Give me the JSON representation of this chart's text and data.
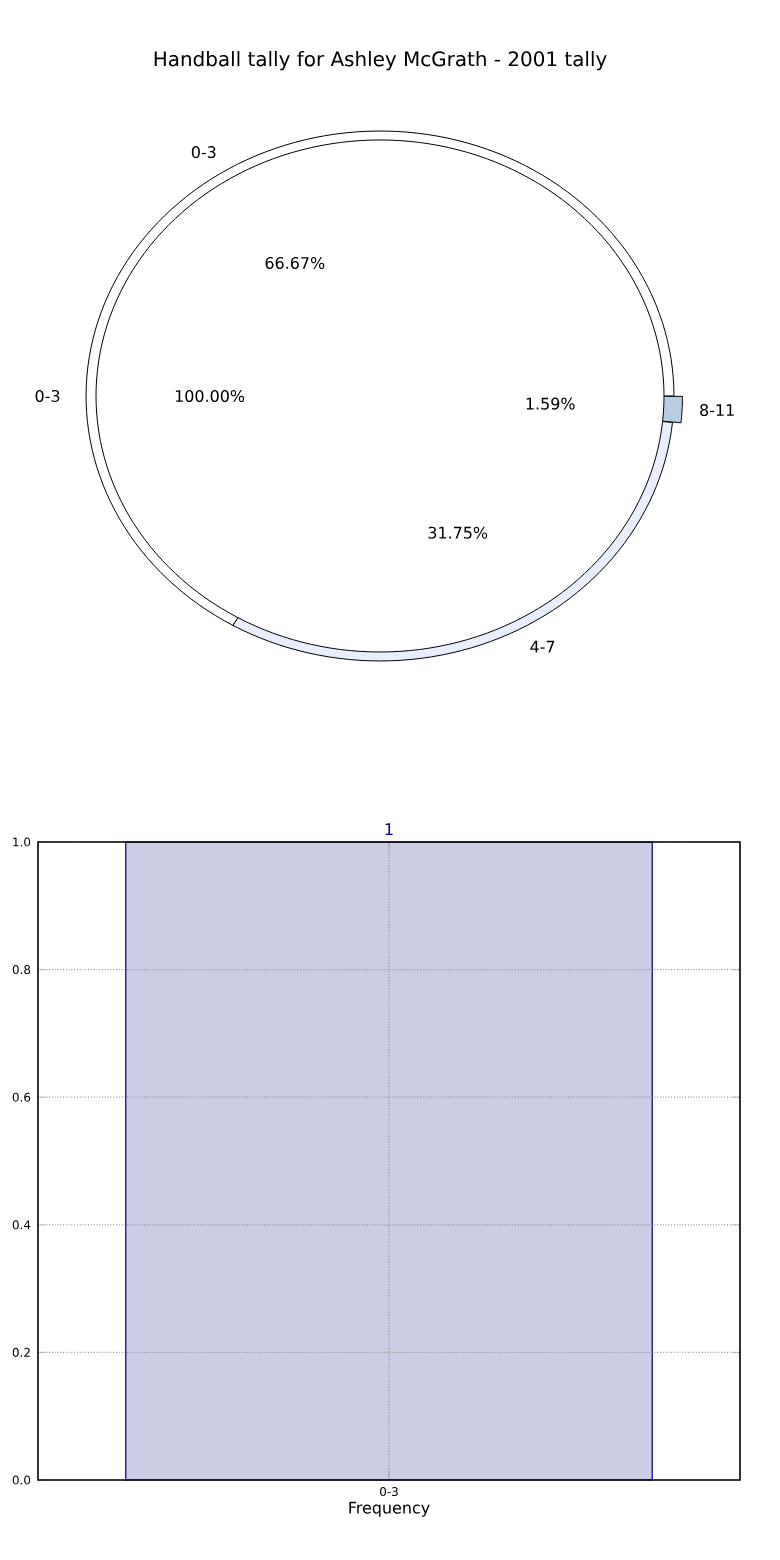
{
  "chart_data": [
    {
      "type": "donut",
      "title": "Handball tally for Ashley McGrath - 2001 tally",
      "categories": [
        "0-3",
        "4-7",
        "8-11"
      ],
      "values": [
        66.67,
        31.75,
        1.59
      ],
      "value_labels": [
        "66.67%",
        "31.75%",
        "1.59%"
      ],
      "colors": [
        "#ffffff",
        "#e8eefa",
        "#b8cce4"
      ]
    },
    {
      "type": "pie",
      "categories": [
        "0-3"
      ],
      "values": [
        100
      ],
      "value_labels": [
        "100.00%"
      ],
      "colors": [
        "#ffffff"
      ]
    },
    {
      "type": "bar",
      "categories": [
        "0-3"
      ],
      "values": [
        1
      ],
      "color": "#ccccE4",
      "data_labels": true,
      "xlabel": "Frequency",
      "ylim": [
        0,
        1
      ],
      "yticks": [
        {
          "value": 0,
          "label": "0.0"
        },
        {
          "value": 0.2,
          "label": "0.2"
        },
        {
          "value": 0.4,
          "label": "0.4"
        },
        {
          "value": 0.6,
          "label": "0.6"
        },
        {
          "value": 0.8,
          "label": "0.8"
        },
        {
          "value": 1,
          "label": "1.0"
        }
      ],
      "grid": true
    }
  ]
}
